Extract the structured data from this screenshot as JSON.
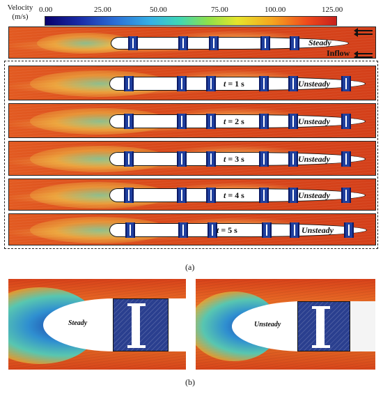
{
  "colorbar": {
    "title_line1": "Velocity",
    "title_line2": "(m/s)",
    "ticks": [
      "0.00",
      "25.00",
      "50.00",
      "75.00",
      "100.00",
      "125.00"
    ]
  },
  "top_panel": {
    "label": "Steady",
    "inflow_label": "Inflow"
  },
  "unsteady_panels": [
    {
      "time_prefix": "t",
      "time_value": " = 1 s",
      "label": "Unsteady"
    },
    {
      "time_prefix": "t",
      "time_value": " = 2 s",
      "label": "Unsteady"
    },
    {
      "time_prefix": "t",
      "time_value": " = 3 s",
      "label": "Unsteady"
    },
    {
      "time_prefix": "t",
      "time_value": " = 4 s",
      "label": "Unsteady"
    },
    {
      "time_prefix": "t",
      "time_value": " = 5 s",
      "label": "Unsteady"
    }
  ],
  "caption_a": "(a)",
  "zoom_left": {
    "label": "Steady"
  },
  "zoom_right": {
    "label": "Unsteady"
  },
  "caption_b": "(b)"
}
